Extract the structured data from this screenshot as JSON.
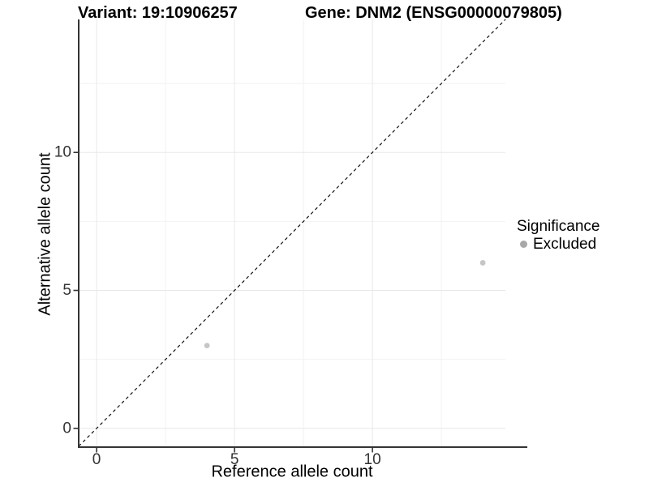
{
  "header": {
    "variant_title": "Variant: 19:10906257",
    "gene_title": "Gene: DNM2 (ENSG00000079805)"
  },
  "chart_data": {
    "type": "scatter",
    "title": "Variant: 19:10906257 / Gene: DNM2 (ENSG00000079805)",
    "xlabel": "Reference allele count",
    "ylabel": "Alternative allele count",
    "xlim": [
      -0.65,
      14.82
    ],
    "ylim": [
      -0.68,
      14.82
    ],
    "x_ticks": [
      0,
      5,
      10
    ],
    "y_ticks": [
      0,
      5,
      10
    ],
    "grid": {
      "major_x": [
        0,
        5,
        10
      ],
      "major_y": [
        0,
        5,
        10
      ],
      "minor_x": [
        2.5,
        7.5,
        12.5
      ],
      "minor_y": [
        2.5,
        7.5,
        12.5
      ]
    },
    "series": [
      {
        "name": "Excluded",
        "marker": "circle",
        "color": "#c6c6c6",
        "points": [
          {
            "x": 4,
            "y": 3
          },
          {
            "x": 14,
            "y": 6
          }
        ]
      }
    ],
    "reference_line": {
      "kind": "identity",
      "slope": 1,
      "intercept": 0,
      "style": "dashed",
      "color": "#000000"
    },
    "legend": {
      "title": "Significance",
      "position": "right",
      "entries": [
        {
          "label": "Excluded",
          "marker": "circle",
          "color": "#a8a8a8"
        }
      ]
    },
    "colors": {
      "background": "#ffffff",
      "grid_major": "#e8e8e8",
      "grid_minor": "#f2f2f2",
      "axis_line": "#343434",
      "tick_mark": "#333333",
      "tick_label": "#333333",
      "point": "#c6c6c6"
    }
  }
}
